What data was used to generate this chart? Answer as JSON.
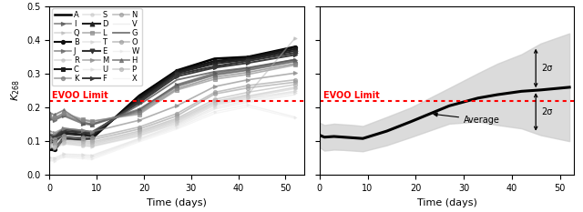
{
  "evoo_limit": 0.22,
  "xlim_left": [
    0,
    54
  ],
  "xlim_right": [
    0,
    53
  ],
  "ylim": [
    0.0,
    0.5
  ],
  "yticks": [
    0.0,
    0.1,
    0.2,
    0.3,
    0.4,
    0.5
  ],
  "xticks_left": [
    0,
    10,
    20,
    30,
    40,
    50
  ],
  "xticks_right": [
    0,
    10,
    20,
    30,
    40,
    50
  ],
  "xlabel": "Time (days)",
  "evoo_label": "EVOO Limit",
  "avg_label": "Average",
  "sigma_label": "2σ",
  "series": {
    "A": {
      "color": "#000000",
      "lw": 1.8,
      "marker": "None",
      "ms": 0,
      "alpha": 1.0,
      "times": [
        0,
        1,
        3,
        7,
        9,
        19,
        27,
        35,
        42,
        52
      ],
      "vals": [
        0.075,
        0.073,
        0.108,
        0.105,
        0.108,
        0.235,
        0.31,
        0.345,
        0.35,
        0.38
      ]
    },
    "B": {
      "color": "#111111",
      "lw": 1.5,
      "marker": "o",
      "ms": 3,
      "alpha": 1.0,
      "times": [
        0,
        1,
        3,
        7,
        9,
        19,
        27,
        35,
        42,
        52
      ],
      "vals": [
        0.08,
        0.076,
        0.112,
        0.108,
        0.11,
        0.23,
        0.308,
        0.338,
        0.348,
        0.378
      ]
    },
    "C": {
      "color": "#1a1a1a",
      "lw": 1.5,
      "marker": "s",
      "ms": 3,
      "alpha": 1.0,
      "times": [
        0,
        1,
        3,
        7,
        9,
        19,
        27,
        35,
        42,
        52
      ],
      "vals": [
        0.1,
        0.095,
        0.122,
        0.118,
        0.115,
        0.225,
        0.305,
        0.335,
        0.345,
        0.373
      ]
    },
    "D": {
      "color": "#222222",
      "lw": 1.5,
      "marker": "^",
      "ms": 3.5,
      "alpha": 1.0,
      "times": [
        0,
        1,
        3,
        7,
        9,
        19,
        27,
        35,
        42,
        52
      ],
      "vals": [
        0.105,
        0.1,
        0.126,
        0.12,
        0.118,
        0.22,
        0.302,
        0.33,
        0.342,
        0.368
      ]
    },
    "E": {
      "color": "#333333",
      "lw": 1.5,
      "marker": "v",
      "ms": 3.5,
      "alpha": 1.0,
      "times": [
        0,
        1,
        3,
        7,
        9,
        19,
        27,
        35,
        42,
        52
      ],
      "vals": [
        0.112,
        0.108,
        0.13,
        0.126,
        0.122,
        0.218,
        0.298,
        0.322,
        0.338,
        0.362
      ]
    },
    "F": {
      "color": "#3a3a3a",
      "lw": 1.4,
      "marker": ">",
      "ms": 3,
      "alpha": 1.0,
      "times": [
        0,
        1,
        3,
        7,
        9,
        19,
        27,
        35,
        42,
        52
      ],
      "vals": [
        0.118,
        0.113,
        0.135,
        0.13,
        0.126,
        0.214,
        0.292,
        0.318,
        0.332,
        0.356
      ]
    },
    "G": {
      "color": "#555555",
      "lw": 1.3,
      "marker": "None",
      "ms": 0,
      "alpha": 0.8,
      "times": [
        0,
        1,
        3,
        7,
        9,
        19,
        27,
        35,
        42,
        52
      ],
      "vals": [
        0.122,
        0.118,
        0.138,
        0.132,
        0.128,
        0.208,
        0.282,
        0.306,
        0.318,
        0.342
      ]
    },
    "H": {
      "color": "#666666",
      "lw": 1.3,
      "marker": "^",
      "ms": 3,
      "alpha": 0.75,
      "times": [
        0,
        1,
        3,
        7,
        9,
        19,
        27,
        35,
        42,
        52
      ],
      "vals": [
        0.185,
        0.178,
        0.192,
        0.155,
        0.15,
        0.195,
        0.265,
        0.298,
        0.312,
        0.338
      ]
    },
    "I": {
      "color": "#555555",
      "lw": 1.2,
      "marker": ">",
      "ms": 3,
      "alpha": 0.7,
      "times": [
        0,
        1,
        3,
        7,
        9,
        19,
        27,
        35,
        42,
        52
      ],
      "vals": [
        0.165,
        0.162,
        0.175,
        0.152,
        0.148,
        0.192,
        0.268,
        0.302,
        0.316,
        0.342
      ]
    },
    "J": {
      "color": "#666666",
      "lw": 1.2,
      "marker": ">",
      "ms": 3,
      "alpha": 0.7,
      "times": [
        0,
        1,
        3,
        7,
        9,
        19,
        27,
        35,
        42,
        52
      ],
      "vals": [
        0.168,
        0.165,
        0.178,
        0.156,
        0.152,
        0.188,
        0.262,
        0.296,
        0.31,
        0.336
      ]
    },
    "K": {
      "color": "#777777",
      "lw": 1.2,
      "marker": "o",
      "ms": 3,
      "alpha": 0.65,
      "times": [
        0,
        1,
        3,
        7,
        9,
        19,
        27,
        35,
        42,
        52
      ],
      "vals": [
        0.172,
        0.168,
        0.182,
        0.162,
        0.158,
        0.184,
        0.256,
        0.29,
        0.304,
        0.33
      ]
    },
    "L": {
      "color": "#888888",
      "lw": 1.2,
      "marker": "s",
      "ms": 3,
      "alpha": 0.65,
      "times": [
        0,
        1,
        3,
        7,
        9,
        19,
        27,
        35,
        42,
        52
      ],
      "vals": [
        0.175,
        0.17,
        0.184,
        0.165,
        0.16,
        0.18,
        0.252,
        0.284,
        0.298,
        0.326
      ]
    },
    "M": {
      "color": "#888888",
      "lw": 1.2,
      "marker": ">",
      "ms": 3,
      "alpha": 0.65,
      "times": [
        0,
        1,
        3,
        7,
        9,
        19,
        27,
        35,
        42,
        52
      ],
      "vals": [
        0.13,
        0.125,
        0.138,
        0.132,
        0.128,
        0.162,
        0.205,
        0.262,
        0.282,
        0.302
      ]
    },
    "N": {
      "color": "#999999",
      "lw": 1.2,
      "marker": "o",
      "ms": 3,
      "alpha": 0.6,
      "times": [
        0,
        1,
        3,
        7,
        9,
        19,
        27,
        35,
        42,
        52
      ],
      "vals": [
        0.11,
        0.106,
        0.118,
        0.112,
        0.11,
        0.142,
        0.182,
        0.245,
        0.265,
        0.282
      ]
    },
    "O": {
      "color": "#9a9a9a",
      "lw": 1.2,
      "marker": "o",
      "ms": 3,
      "alpha": 0.6,
      "times": [
        0,
        1,
        3,
        7,
        9,
        19,
        27,
        35,
        42,
        52
      ],
      "vals": [
        0.102,
        0.098,
        0.112,
        0.106,
        0.104,
        0.136,
        0.175,
        0.24,
        0.258,
        0.275
      ]
    },
    "P": {
      "color": "#aaaaaa",
      "lw": 1.1,
      "marker": "o",
      "ms": 3,
      "alpha": 0.55,
      "times": [
        0,
        1,
        3,
        7,
        9,
        19,
        27,
        35,
        42,
        52
      ],
      "vals": [
        0.095,
        0.092,
        0.106,
        0.1,
        0.098,
        0.13,
        0.168,
        0.224,
        0.245,
        0.268
      ]
    },
    "Q": {
      "color": "#b0b0b0",
      "lw": 1.1,
      "marker": ">",
      "ms": 2.5,
      "alpha": 0.5,
      "times": [
        0,
        1,
        3,
        7,
        9,
        19,
        27,
        35,
        42,
        52
      ],
      "vals": [
        0.092,
        0.088,
        0.102,
        0.096,
        0.094,
        0.126,
        0.164,
        0.218,
        0.238,
        0.405
      ]
    },
    "R": {
      "color": "#b8b8b8",
      "lw": 1.1,
      "marker": "o",
      "ms": 2.5,
      "alpha": 0.5,
      "times": [
        0,
        1,
        3,
        7,
        9,
        19,
        27,
        35,
        42,
        52
      ],
      "vals": [
        0.088,
        0.084,
        0.098,
        0.092,
        0.09,
        0.122,
        0.16,
        0.214,
        0.234,
        0.26
      ]
    },
    "S": {
      "color": "#c0c0c0",
      "lw": 1.1,
      "marker": "o",
      "ms": 2.5,
      "alpha": 0.45,
      "times": [
        0,
        1,
        3,
        7,
        9,
        19,
        27,
        35,
        42,
        52
      ],
      "vals": [
        0.085,
        0.082,
        0.095,
        0.088,
        0.086,
        0.118,
        0.156,
        0.21,
        0.23,
        0.256
      ]
    },
    "T": {
      "color": "#c8c8c8",
      "lw": 1.1,
      "marker": ">",
      "ms": 2.5,
      "alpha": 0.45,
      "times": [
        0,
        1,
        3,
        7,
        9,
        19,
        27,
        35,
        42,
        52
      ],
      "vals": [
        0.082,
        0.078,
        0.092,
        0.086,
        0.084,
        0.115,
        0.152,
        0.206,
        0.226,
        0.248
      ]
    },
    "U": {
      "color": "#d0d0d0",
      "lw": 1.0,
      "marker": ">",
      "ms": 2.5,
      "alpha": 0.4,
      "times": [
        0,
        1,
        3,
        7,
        9,
        19,
        27,
        35,
        42,
        52
      ],
      "vals": [
        0.052,
        0.05,
        0.062,
        0.06,
        0.058,
        0.108,
        0.148,
        0.2,
        0.22,
        0.244
      ]
    },
    "V": {
      "color": "#d8d8d8",
      "lw": 1.0,
      "marker": "None",
      "ms": 0,
      "alpha": 0.4,
      "times": [
        0,
        1,
        3,
        7,
        9,
        19,
        27,
        35,
        42,
        52
      ],
      "vals": [
        0.048,
        0.046,
        0.058,
        0.056,
        0.054,
        0.105,
        0.144,
        0.195,
        0.215,
        0.238
      ]
    },
    "W": {
      "color": "#e0e0e0",
      "lw": 1.0,
      "marker": ">",
      "ms": 2,
      "alpha": 0.4,
      "times": [
        0,
        1,
        3,
        7,
        9,
        19,
        27,
        35,
        42,
        52
      ],
      "vals": [
        0.045,
        0.042,
        0.055,
        0.052,
        0.05,
        0.102,
        0.14,
        0.188,
        0.208,
        0.172
      ]
    },
    "X": {
      "color": "#e8e8e8",
      "lw": 1.0,
      "marker": "None",
      "ms": 0,
      "alpha": 0.4,
      "times": [
        0,
        1,
        3,
        7,
        9,
        19,
        27,
        35,
        42,
        52
      ],
      "vals": [
        0.042,
        0.04,
        0.052,
        0.048,
        0.046,
        0.098,
        0.136,
        0.182,
        0.202,
        0.168
      ]
    }
  },
  "legend_order": [
    "A",
    "B",
    "C",
    "D",
    "E",
    "F",
    "G",
    "H",
    "I",
    "J",
    "K",
    "L",
    "M",
    "N",
    "O",
    "P",
    "Q",
    "R",
    "S",
    "T",
    "U",
    "V",
    "W",
    "X"
  ],
  "avg_times": [
    0,
    1,
    3,
    5,
    7,
    9,
    14,
    19,
    27,
    33,
    37,
    42,
    46,
    52
  ],
  "avg_vals": [
    0.118,
    0.112,
    0.114,
    0.112,
    0.11,
    0.108,
    0.13,
    0.158,
    0.205,
    0.228,
    0.238,
    0.248,
    0.252,
    0.26
  ],
  "avg_upper": [
    0.155,
    0.148,
    0.152,
    0.15,
    0.148,
    0.145,
    0.172,
    0.2,
    0.258,
    0.302,
    0.33,
    0.358,
    0.39,
    0.42
  ],
  "avg_lower": [
    0.082,
    0.072,
    0.075,
    0.074,
    0.072,
    0.07,
    0.088,
    0.112,
    0.152,
    0.158,
    0.148,
    0.138,
    0.118,
    0.1
  ]
}
